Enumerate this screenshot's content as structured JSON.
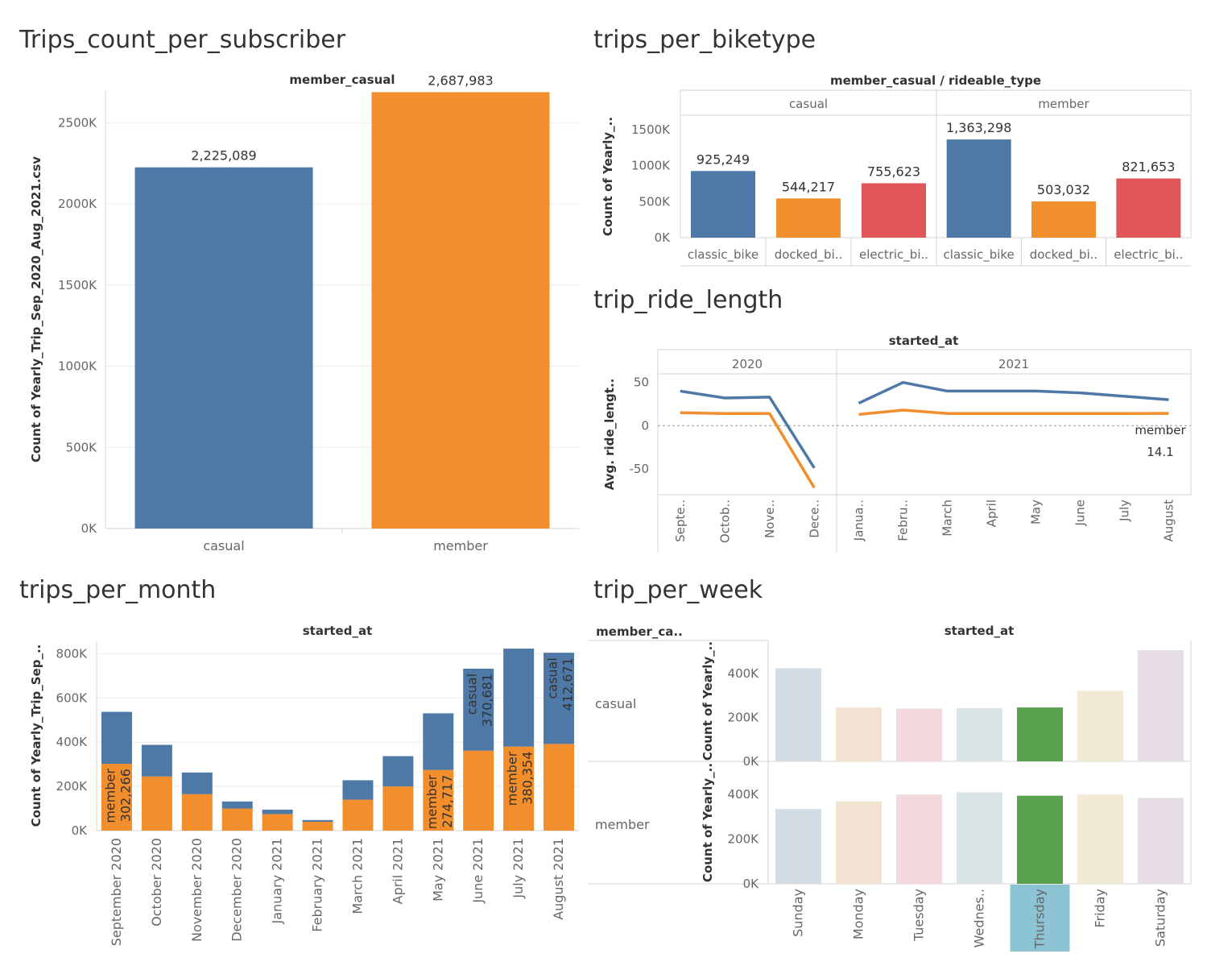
{
  "colors": {
    "blue": "#4e79a7",
    "orange": "#f28e2b",
    "red": "#e15759",
    "green": "#59a14f",
    "highlight": "#8cc4d3",
    "grid": "#ececec",
    "axis": "#d4d4d4",
    "label": "#333333",
    "tick": "#666666"
  },
  "chart_data": [
    {
      "id": "subscriber",
      "type": "bar",
      "title": "Trips_count_per_subscriber",
      "header": "member_casual",
      "ylabel": "Count of Yearly_Trip_Sep_2020_Aug_2021.csv",
      "ylim": [
        0,
        2700000
      ],
      "yticks": [
        0,
        500000,
        1000000,
        1500000,
        2000000,
        2500000
      ],
      "yticklabels": [
        "0K",
        "500K",
        "1000K",
        "1500K",
        "2000K",
        "2500K"
      ],
      "categories": [
        "casual",
        "member"
      ],
      "values": [
        2225089,
        2687983
      ],
      "value_labels": [
        "2,225,089",
        "2,687,983"
      ],
      "bar_colors": [
        "blue",
        "orange"
      ],
      "grid": true
    },
    {
      "id": "biketype",
      "type": "bar",
      "title": "trips_per_biketype",
      "header": "member_casual / rideable_type",
      "ylabel": "Count of Yearly_..",
      "ylim": [
        0,
        1700000
      ],
      "yticks": [
        0,
        500000,
        1000000,
        1500000
      ],
      "yticklabels": [
        "0K",
        "500K",
        "1000K",
        "1500K"
      ],
      "panels": [
        {
          "name": "casual",
          "categories": [
            "classic_bike",
            "docked_bi..",
            "electric_bi.."
          ],
          "values": [
            925249,
            544217,
            755623
          ],
          "value_labels": [
            "925,249",
            "544,217",
            "755,623"
          ]
        },
        {
          "name": "member",
          "categories": [
            "classic_bike",
            "docked_bi..",
            "electric_bi.."
          ],
          "values": [
            1363298,
            503032,
            821653
          ],
          "value_labels": [
            "1,363,298",
            "503,032",
            "821,653"
          ]
        }
      ],
      "bar_colors": [
        "blue",
        "orange",
        "red"
      ]
    },
    {
      "id": "ridelength",
      "type": "line",
      "title": "trip_ride_length",
      "header": "started_at",
      "ylabel": "Avg. ride_lengt..",
      "ylim": [
        -80,
        60
      ],
      "yticks": [
        -50,
        0,
        50
      ],
      "yticklabels": [
        "-50",
        "0",
        "50"
      ],
      "panels": [
        {
          "name": "2020",
          "categories": [
            "Septe..",
            "Octob..",
            "Nove..",
            "Dece.."
          ]
        },
        {
          "name": "2021",
          "categories": [
            "Janua..",
            "Febru..",
            "March",
            "April",
            "May",
            "June",
            "July",
            "August"
          ]
        }
      ],
      "series": [
        {
          "color": "blue",
          "values": [
            [
              40,
              32,
              33,
              -49
            ],
            [
              26,
              50,
              40,
              40,
              40,
              38,
              34,
              30
            ]
          ]
        },
        {
          "color": "orange",
          "values": [
            [
              15,
              14,
              14,
              -72
            ],
            [
              13,
              18,
              14,
              14,
              14,
              14,
              14,
              14.1
            ]
          ]
        }
      ],
      "annotation": {
        "line1": "member",
        "line2": "14.1"
      },
      "zero_line": true
    },
    {
      "id": "month",
      "type": "bar",
      "stacked": true,
      "title": "trips_per_month",
      "header": "started_at",
      "ylabel": "Count of Yearly_Trip_Sep_..",
      "ylim": [
        0,
        860000
      ],
      "yticks": [
        0,
        200000,
        400000,
        600000,
        800000
      ],
      "yticklabels": [
        "0K",
        "200K",
        "400K",
        "600K",
        "800K"
      ],
      "categories": [
        "September 2020",
        "October 2020",
        "November 2020",
        "December 2020",
        "January 2021",
        "February 2021",
        "March 2021",
        "April 2021",
        "May 2021",
        "June 2021",
        "July 2021",
        "August 2021"
      ],
      "series": [
        {
          "name": "member",
          "color": "orange",
          "values": [
            302266,
            245000,
            165000,
            100000,
            75000,
            40000,
            140000,
            200000,
            274717,
            362000,
            380354,
            392000
          ]
        },
        {
          "name": "casual",
          "color": "blue",
          "values": [
            235000,
            143000,
            98000,
            32000,
            20000,
            8000,
            88000,
            137000,
            256000,
            370681,
            443000,
            412671
          ]
        }
      ],
      "annotations": [
        {
          "series": "member",
          "index": 0,
          "name": "member",
          "value": "302,266"
        },
        {
          "series": "member",
          "index": 8,
          "name": "member",
          "value": "274,717"
        },
        {
          "series": "casual",
          "index": 9,
          "name": "casual",
          "value": "370,681"
        },
        {
          "series": "member",
          "index": 10,
          "name": "member",
          "value": "380,354"
        },
        {
          "series": "casual",
          "index": 11,
          "name": "casual",
          "value": "412,671"
        }
      ]
    },
    {
      "id": "week",
      "type": "bar",
      "title": "trip_per_week",
      "header": "started_at",
      "row_header": "member_ca..",
      "ylabel": "Count of Yearly_..",
      "yticks": [
        0,
        200000,
        400000
      ],
      "yticklabels": [
        "0K",
        "200K",
        "400K"
      ],
      "categories": [
        "Sunday",
        "Monday",
        "Tuesday",
        "Wednes..",
        "Thursday",
        "Friday",
        "Saturday"
      ],
      "bar_colors": [
        "#d5dde4",
        "#f3e3d2",
        "#f2d9dc",
        "#d9e5e4",
        "#59a14f",
        "#f1e9d4",
        "#e6dce4"
      ],
      "highlight_index": 4,
      "rows": [
        {
          "name": "casual",
          "values": [
            423000,
            245000,
            240000,
            242000,
            245000,
            320000,
            505000
          ]
        },
        {
          "name": "member",
          "values": [
            335000,
            370000,
            400000,
            410000,
            395000,
            400000,
            385000
          ]
        }
      ],
      "ylim": [
        0,
        520000
      ]
    }
  ]
}
